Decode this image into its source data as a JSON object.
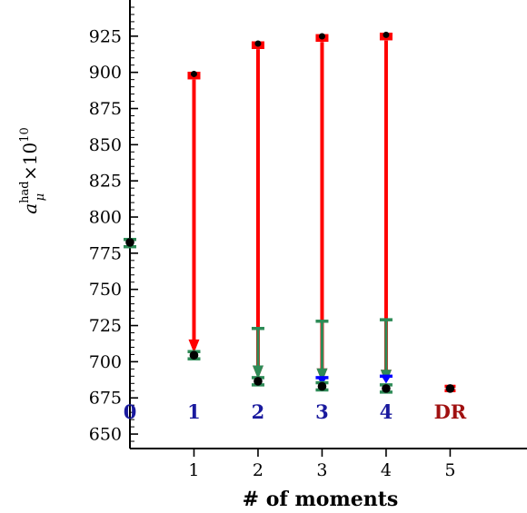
{
  "chart_data": {
    "type": "scatter",
    "title": "",
    "xlabel": "# of moments",
    "ylabel": {
      "base": "a",
      "superscript": "had",
      "subscript": "μ",
      "factor": "×10",
      "factor_exp": "10"
    },
    "x_ticks": [
      "1",
      "2",
      "3",
      "4",
      "5"
    ],
    "xlim": [
      0,
      6.2
    ],
    "ylim": [
      640,
      950
    ],
    "y_ticks": [
      650,
      675,
      700,
      725,
      750,
      775,
      800,
      825,
      850,
      875,
      900,
      925
    ],
    "colors": {
      "red": "#ff0000",
      "green": "#2e8b57",
      "blue": "#0000ff",
      "navy": "#1a1a9e",
      "darkred": "#a01010",
      "black": "#000000"
    },
    "points": [
      {
        "x": 0,
        "y": 782.5
      },
      {
        "x": 1,
        "y": 704.5
      },
      {
        "x": 2,
        "y": 686.5
      },
      {
        "x": 3,
        "y": 683.0
      },
      {
        "x": 4,
        "y": 681.5
      },
      {
        "x": 5,
        "y": 681.5
      }
    ],
    "green_errorbars": [
      {
        "x": 0,
        "y": 782.0,
        "err": 2.5
      },
      {
        "x": 1,
        "y": 704.5,
        "err": 2.5
      },
      {
        "x": 2,
        "y": 686.5,
        "err": 2.5
      },
      {
        "x": 3,
        "y": 683.0,
        "err": 2.5
      },
      {
        "x": 4,
        "y": 681.5,
        "err": 2.5
      }
    ],
    "dr_point": {
      "x": 5,
      "y": 681.5,
      "err": 1.5
    },
    "red_markers": [
      {
        "x": 1,
        "y": 897.0
      },
      {
        "x": 2,
        "y": 918.0
      },
      {
        "x": 3,
        "y": 923.0
      },
      {
        "x": 4,
        "y": 924.0
      }
    ],
    "red_arrows": [
      {
        "x": 1,
        "from": 895,
        "to": 706
      },
      {
        "x": 2,
        "from": 916,
        "to": 688
      },
      {
        "x": 3,
        "from": 921,
        "to": 686
      },
      {
        "x": 4,
        "from": 922,
        "to": 685
      }
    ],
    "green_arrows": [
      {
        "x": 2,
        "from": 723,
        "to": 688
      },
      {
        "x": 3,
        "from": 728,
        "to": 686
      },
      {
        "x": 4,
        "from": 729,
        "to": 685
      }
    ],
    "blue_markers": [
      {
        "x": 3,
        "y": 689
      },
      {
        "x": 4,
        "y": 690
      }
    ],
    "annotations": [
      {
        "x": 0,
        "text": "0",
        "color": "navy"
      },
      {
        "x": 1,
        "text": "1",
        "color": "navy"
      },
      {
        "x": 2,
        "text": "2",
        "color": "navy"
      },
      {
        "x": 3,
        "text": "3",
        "color": "navy"
      },
      {
        "x": 4,
        "text": "4",
        "color": "navy"
      },
      {
        "x": 5,
        "text": "DR",
        "color": "darkred"
      }
    ],
    "annotation_y": 665
  }
}
